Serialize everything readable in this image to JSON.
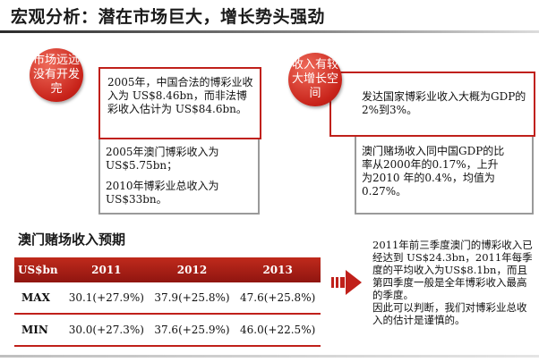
{
  "title": "宏观分析：潜在市场巨大，增长势头强劲",
  "left": {
    "circle": "市场远远没有开发完",
    "box_text": "2005年，中国合法的博彩业收入为 US$8.46bn，而非法博彩收入估计为 US$84.6bn。",
    "text1": "2005年澳门博彩收入为 US$5.75bn；",
    "text2": "2010年博彩业总收入为 US$33bn。"
  },
  "right": {
    "circle": "收入有较大增长空间",
    "box_text": "发达国家博彩业收入大概为GDP的2%到3%。",
    "text1": "澳门赌场收入同中国GDP的比率从2000年的0.17%，上升为2010 年的0.4%，均值为0.27%。"
  },
  "section_title": "澳门赌场收入预期",
  "table": {
    "headers": [
      "US$bn",
      "2011",
      "2012",
      "2013"
    ],
    "rows": [
      {
        "label": "MAX",
        "values": [
          "30.1(+27.9%)",
          "37.9(+25.8%)",
          "47.6(+25.8%)"
        ]
      },
      {
        "label": "MIN",
        "values": [
          "30.0(+27.3%)",
          "37.6(+25.9%)",
          "46.0(+22.5%)"
        ]
      }
    ]
  },
  "note": {
    "p1": "2011年前三季度澳门的博彩收入已经达到 US$24.3bn，2011年每季度的平均收入为US$8.1bn，而且第四季度一般是全年博彩收入最高的季度。",
    "p2": "因此可以判断，我们对博彩业总收入的估计是谨慎的。"
  },
  "colors": {
    "accent": "#c0201a",
    "frame": "#9a9a9a"
  }
}
